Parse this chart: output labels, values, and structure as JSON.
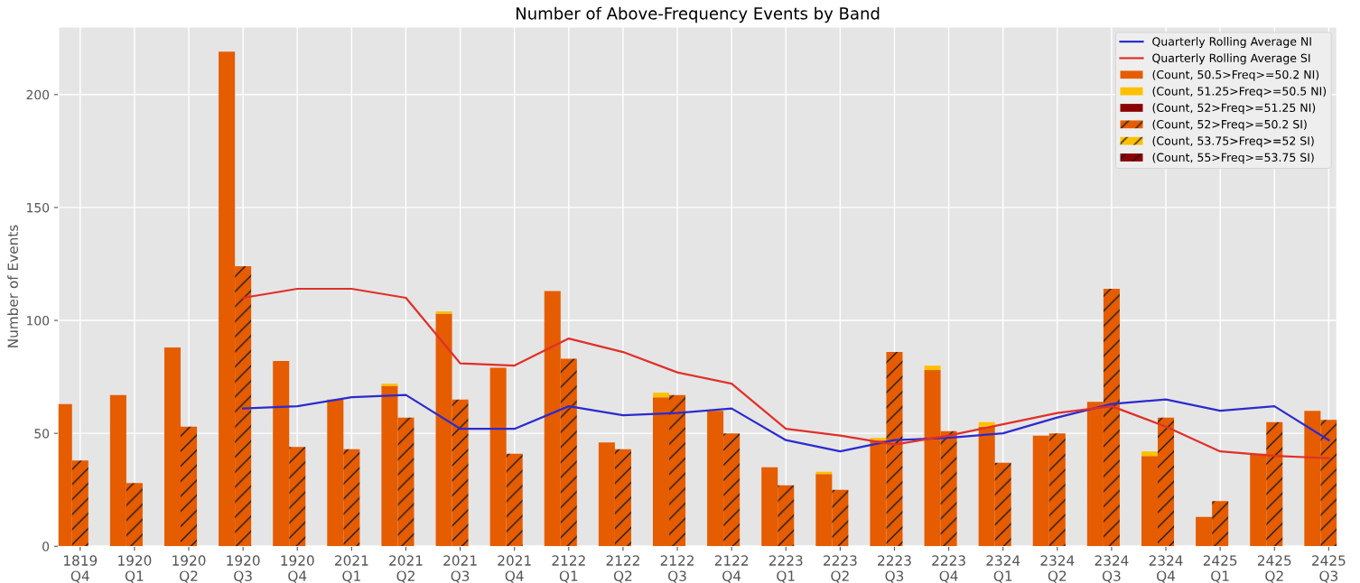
{
  "chart_data": {
    "type": "bar",
    "title": "Number of Above-Frequency Events by Band",
    "ylabel": "Number of Events",
    "categories": [
      "1819\nQ4",
      "1920\nQ1",
      "1920\nQ2",
      "1920\nQ3",
      "1920\nQ4",
      "2021\nQ1",
      "2021\nQ2",
      "2021\nQ3",
      "2021\nQ4",
      "2122\nQ1",
      "2122\nQ2",
      "2122\nQ3",
      "2122\nQ4",
      "2223\nQ1",
      "2223\nQ2",
      "2223\nQ3",
      "2223\nQ4",
      "2324\nQ1",
      "2324\nQ2",
      "2324\nQ3",
      "2324\nQ4",
      "2425\nQ1",
      "2425\nQ2",
      "2425\nQ3"
    ],
    "ylim": [
      0,
      230
    ],
    "yticks": [
      0,
      50,
      100,
      150,
      200
    ],
    "grid": true,
    "legend": "top right",
    "series": [
      {
        "name": "Quarterly Rolling Average NI",
        "type": "line",
        "color": "#2b2bd0",
        "values": [
          null,
          null,
          null,
          61,
          62,
          66,
          67,
          52,
          52,
          62,
          58,
          59,
          61,
          47,
          42,
          47,
          48,
          50,
          57,
          63,
          65,
          60,
          62,
          47
        ]
      },
      {
        "name": "Quarterly Rolling Average SI",
        "type": "line",
        "color": "#e0302a",
        "values": [
          null,
          null,
          null,
          110,
          114,
          114,
          110,
          81,
          80,
          92,
          86,
          77,
          72,
          52,
          49,
          45,
          49,
          54,
          59,
          62,
          53,
          42,
          40,
          39
        ]
      },
      {
        "name": "(Count, 50.5>Freq>=50.2 NI)",
        "color": "#e65c00",
        "values": [
          63,
          67,
          88,
          219,
          82,
          65,
          71,
          103,
          79,
          113,
          46,
          66,
          60,
          35,
          32,
          47,
          78,
          53,
          49,
          64,
          40,
          13,
          41,
          60
        ]
      },
      {
        "name": "(Count, 51.25>Freq>=50.5 NI)",
        "color": "#ffc000",
        "values": [
          null,
          null,
          null,
          null,
          null,
          null,
          1,
          1,
          null,
          null,
          null,
          2,
          null,
          null,
          1,
          1,
          2,
          2,
          null,
          null,
          2,
          null,
          null,
          null
        ],
        "base": [
          null,
          null,
          null,
          null,
          null,
          null,
          71,
          103,
          null,
          null,
          null,
          66,
          null,
          null,
          32,
          47,
          78,
          53,
          null,
          null,
          40,
          null,
          null,
          null
        ]
      },
      {
        "name": "(Count, 52>Freq>=51.25 NI)",
        "color": "#8b0000",
        "values": [
          null,
          null,
          null,
          null,
          null,
          null,
          null,
          null,
          null,
          null,
          null,
          null,
          null,
          null,
          null,
          null,
          null,
          null,
          null,
          null,
          null,
          null,
          null,
          null
        ]
      },
      {
        "name": "(Count, 52>Freq>=50.2 SI)",
        "color": "#e65c00",
        "values": [
          38,
          28,
          53,
          124,
          44,
          43,
          57,
          65,
          41,
          83,
          43,
          67,
          50,
          27,
          25,
          86,
          51,
          37,
          50,
          114,
          57,
          20,
          55,
          56
        ]
      },
      {
        "name": "(Count, 53.75>Freq>=52 SI)",
        "color": "#ffc000",
        "values": [
          null,
          null,
          null,
          null,
          null,
          null,
          null,
          null,
          null,
          null,
          null,
          null,
          null,
          null,
          null,
          null,
          null,
          null,
          null,
          null,
          null,
          null,
          null,
          null
        ]
      },
      {
        "name": "(Count, 55>Freq>=53.75 SI)",
        "color": "#8b0000",
        "values": [
          null,
          null,
          null,
          null,
          null,
          null,
          null,
          null,
          null,
          null,
          null,
          null,
          null,
          null,
          null,
          null,
          null,
          null,
          null,
          null,
          null,
          null,
          null,
          null
        ]
      }
    ]
  }
}
